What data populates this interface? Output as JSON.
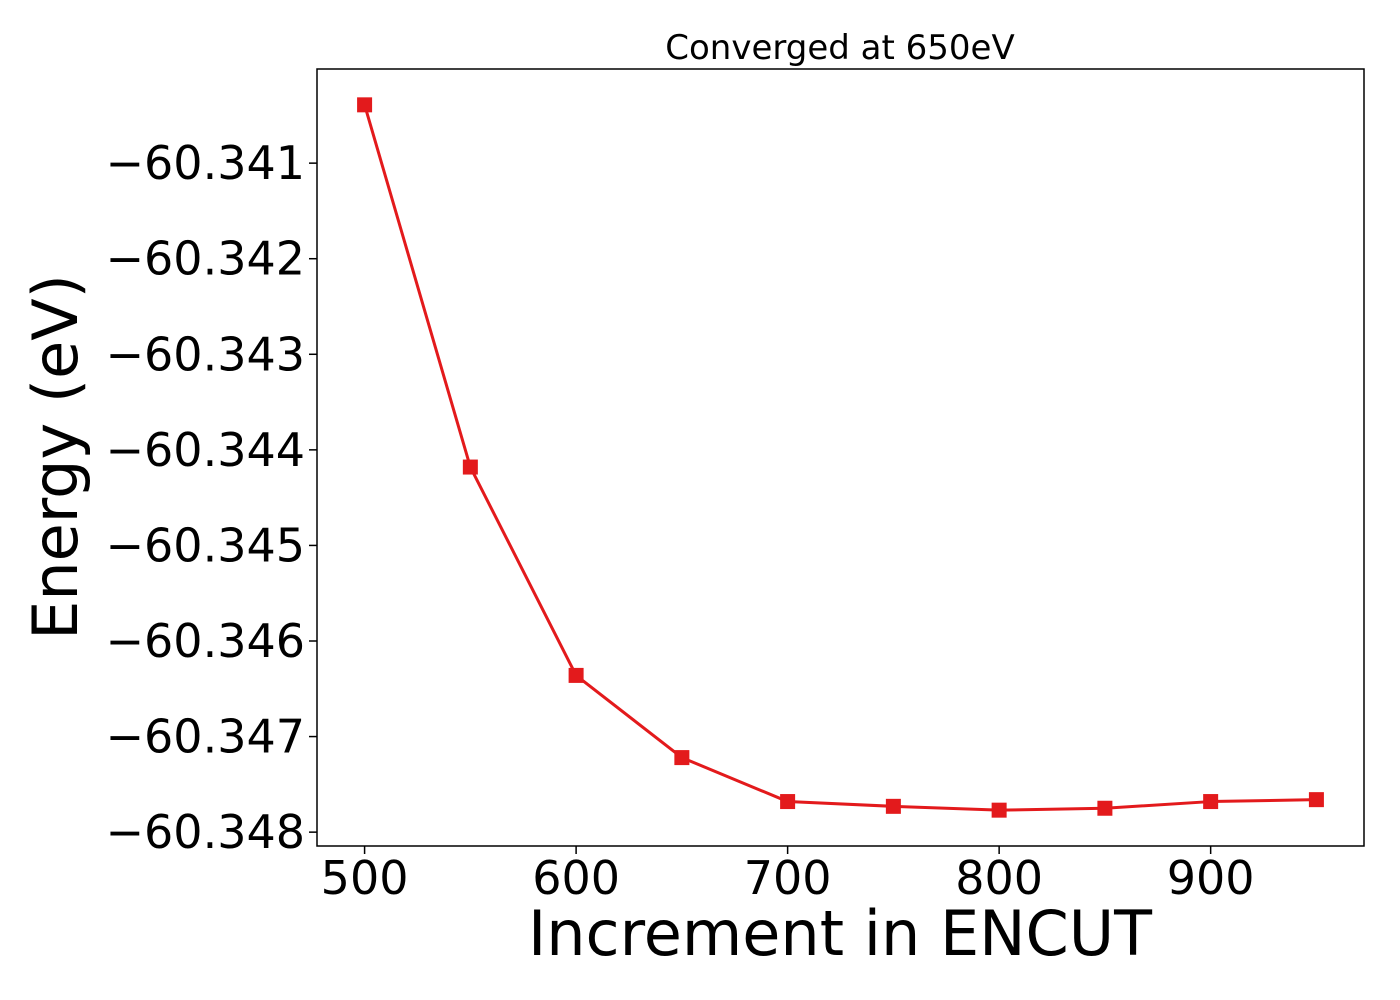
{
  "chart_data": {
    "type": "line",
    "title": "Converged at 650eV",
    "xlabel": "Increment in ENCUT",
    "ylabel": "Energy (eV)",
    "x": [
      500,
      550,
      600,
      650,
      700,
      750,
      800,
      850,
      900,
      950
    ],
    "series": [
      {
        "values": [
          -60.34039,
          -60.34418,
          -60.34636,
          -60.34722,
          -60.34768,
          -60.34773,
          -60.34777,
          -60.34775,
          -60.34768,
          -60.34766
        ]
      }
    ],
    "xlim": [
      477.5,
      972.5
    ],
    "ylim": [
      -60.348145,
      -60.340015
    ],
    "xticks": [
      500,
      600,
      700,
      800,
      900
    ],
    "xtick_labels": [
      "500",
      "600",
      "700",
      "800",
      "900"
    ],
    "yticks": [
      -60.341,
      -60.342,
      -60.343,
      -60.344,
      -60.345,
      -60.346,
      -60.347,
      -60.348
    ],
    "ytick_labels": [
      "−60.341",
      "−60.342",
      "−60.343",
      "−60.344",
      "−60.345",
      "−60.346",
      "−60.347",
      "−60.348"
    ],
    "marker": "square",
    "line_color": "#e31a1c",
    "grid": false,
    "legend": "none"
  }
}
